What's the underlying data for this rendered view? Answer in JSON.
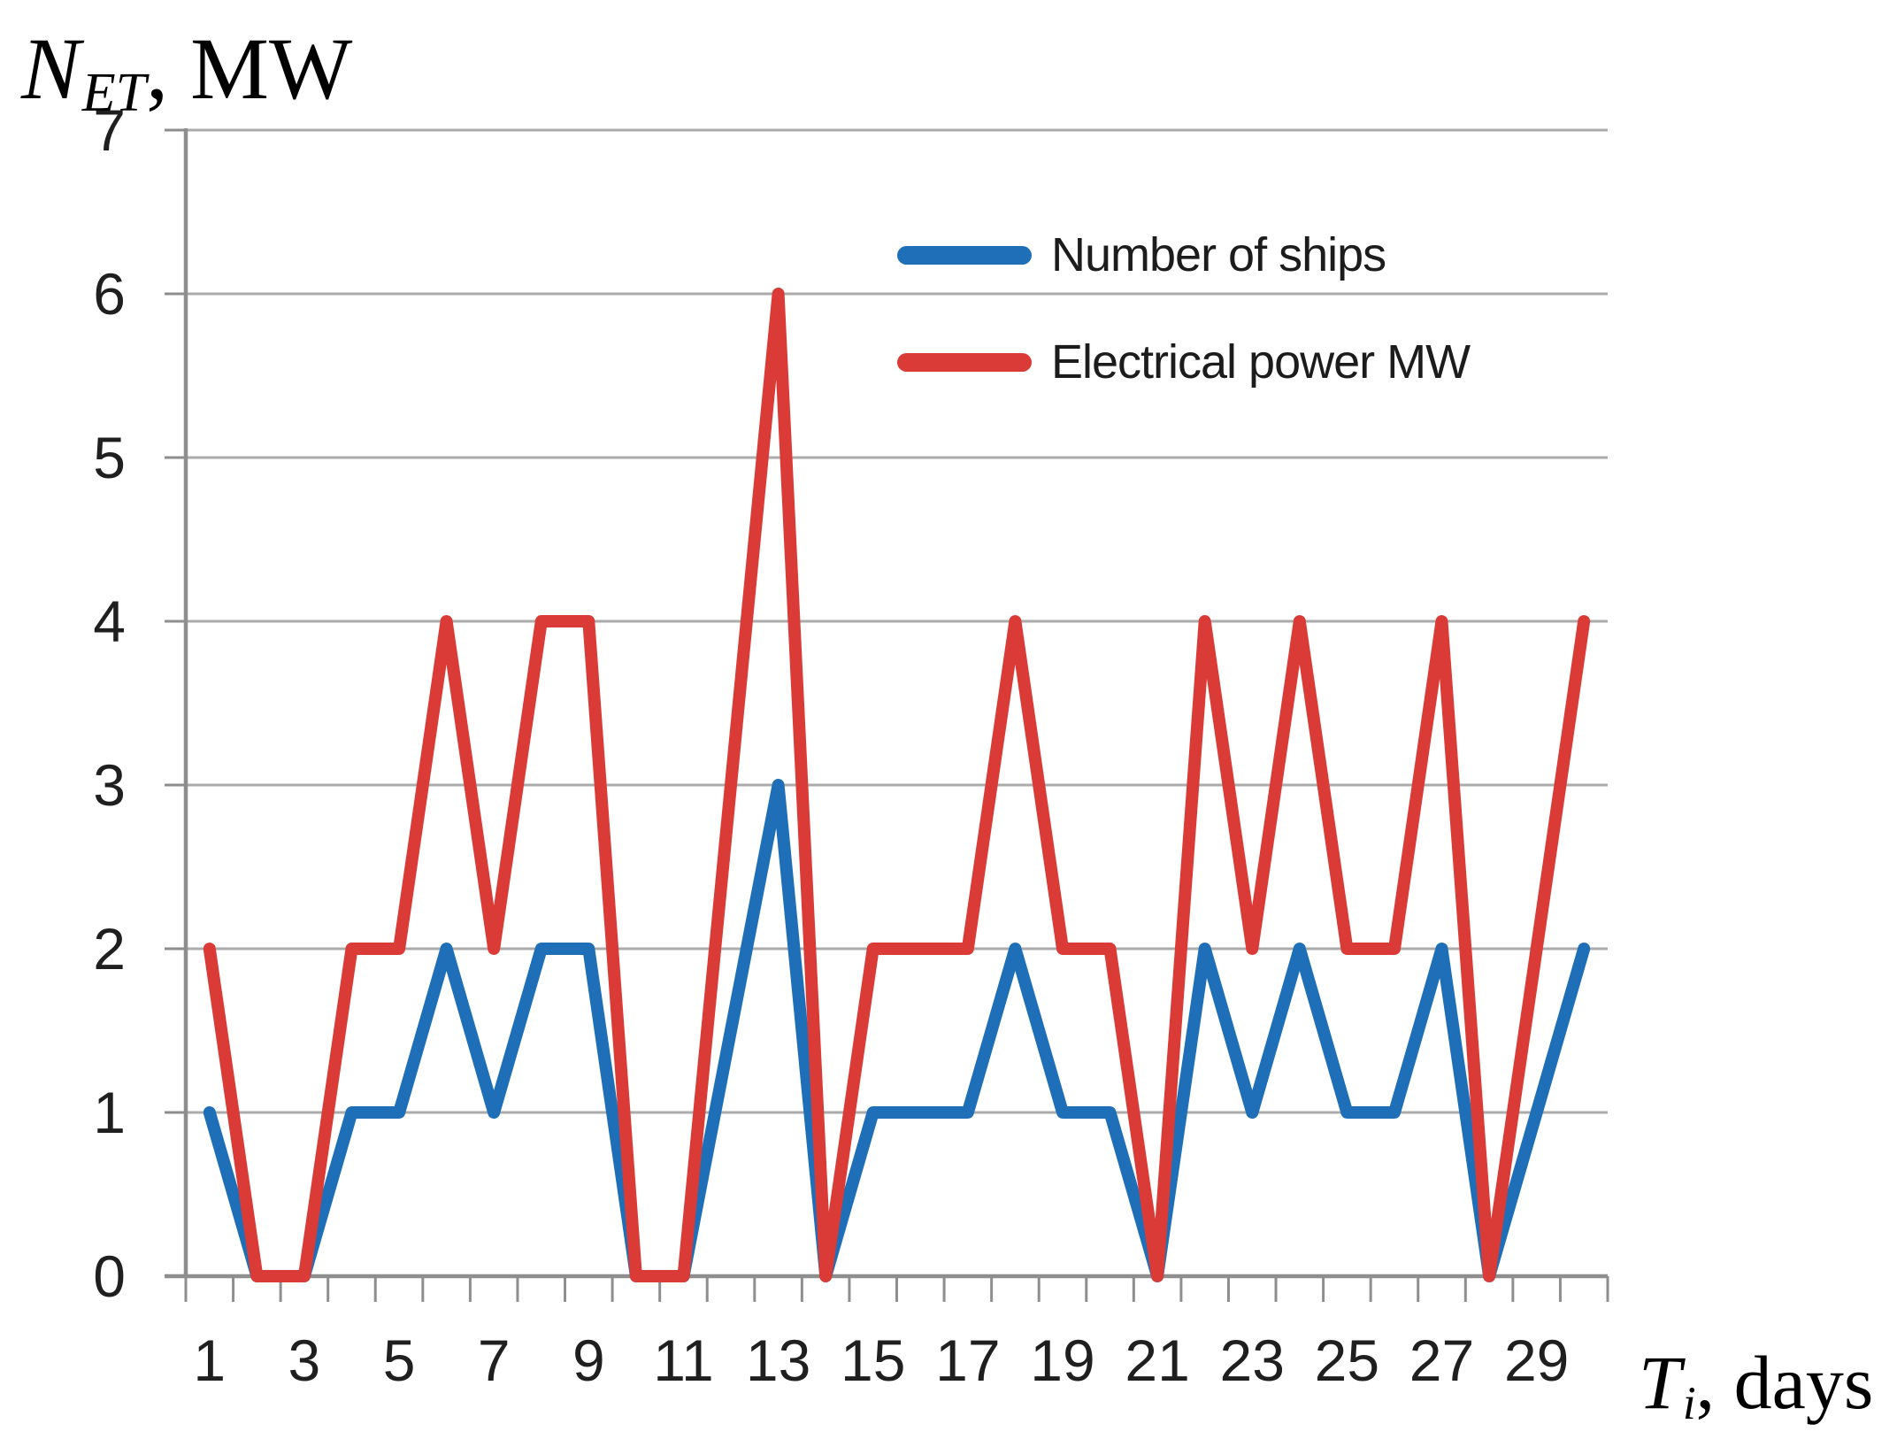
{
  "axis_titles": {
    "y_var": "N",
    "y_sub": "ET",
    "y_unit": ", MW",
    "x_var": "T",
    "x_sub": "i",
    "x_unit": ", days"
  },
  "legend": {
    "position": "inside-top-center",
    "items": [
      {
        "label": "Number of ships",
        "color": "#1E6FB8"
      },
      {
        "label": "Electrical power MW",
        "color": "#DB3B37"
      }
    ]
  },
  "chart_data": {
    "type": "line",
    "title": "",
    "xlabel": "Ti, days",
    "ylabel": "NET, MW",
    "x": [
      1,
      2,
      3,
      4,
      5,
      6,
      7,
      8,
      9,
      10,
      11,
      12,
      13,
      14,
      15,
      16,
      17,
      18,
      19,
      20,
      21,
      22,
      23,
      24,
      25,
      26,
      27,
      28,
      29,
      30
    ],
    "x_tick_labels": [
      "1",
      "3",
      "5",
      "7",
      "9",
      "11",
      "13",
      "15",
      "17",
      "19",
      "21",
      "23",
      "25",
      "27",
      "29"
    ],
    "y_tick_labels": [
      "0",
      "1",
      "2",
      "3",
      "4",
      "5",
      "6",
      "7"
    ],
    "ylim": [
      0,
      7
    ],
    "xlim_days": [
      1,
      30
    ],
    "grid": true,
    "legend_position": "inside top, stacked vertically",
    "series": [
      {
        "name": "Number of ships",
        "color": "#1E6FB8",
        "values": [
          1,
          0,
          0,
          1,
          1,
          2,
          1,
          2,
          2,
          0,
          0,
          1.5,
          3,
          0,
          1,
          1,
          1,
          2,
          1,
          1,
          0,
          2,
          1,
          2,
          1,
          1,
          2,
          0,
          1,
          2
        ]
      },
      {
        "name": "Electrical power MW",
        "color": "#DB3B37",
        "values": [
          2,
          0,
          0,
          2,
          2,
          4,
          2,
          4,
          4,
          0,
          0,
          3,
          6,
          0,
          2,
          2,
          2,
          4,
          2,
          2,
          0,
          4,
          2,
          4,
          2,
          2,
          4,
          0,
          2,
          4
        ]
      }
    ],
    "grid_color": "#ABABAB",
    "axis_color": "#8E8E8E",
    "tick_label_color": "#1F1F1F"
  }
}
